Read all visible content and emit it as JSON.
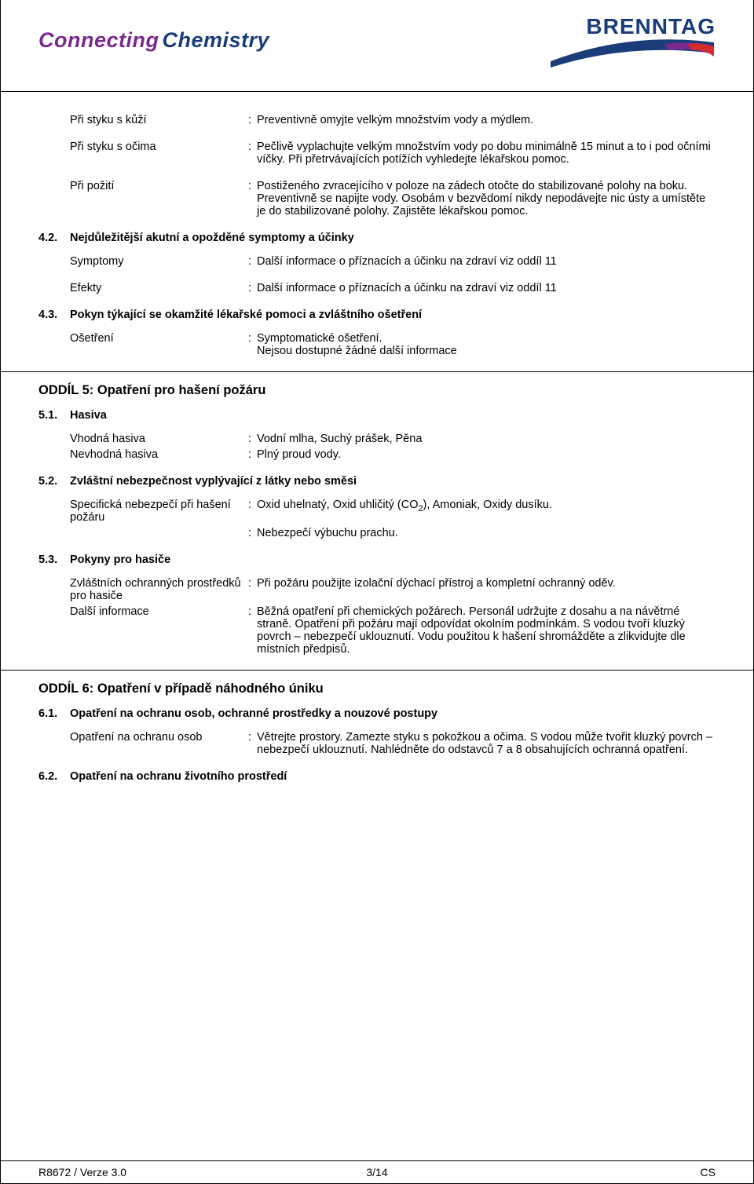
{
  "header": {
    "brand_left_1": "Connecting",
    "brand_left_2": "Chemistry",
    "brand_right": "BRENNTAG",
    "swoosh_colors": [
      "#1a3d7a",
      "#7a2a8f",
      "#d62c2c"
    ]
  },
  "s4_rows": [
    {
      "label": "Při styku s kůží",
      "value": "Preventivně omyjte velkým množstvím vody a mýdlem."
    },
    {
      "label": "Při styku s očima",
      "value": "Pečlivě vyplachujte velkým množstvím vody po dobu minimálně 15 minut a to i pod očními víčky. Při přetrvávajících potížích vyhledejte lékařskou pomoc."
    },
    {
      "label": "Při požití",
      "value": "Postiženého zvracejícího v poloze na zádech otočte do stabilizované polohy na boku. Preventivně se napijte vody. Osobám v bezvědomí nikdy nepodávejte nic ústy a umístěte je do stabilizované polohy. Zajistěte lékařskou pomoc."
    }
  ],
  "s4_2": {
    "num": "4.2.",
    "title": "Nejdůležitější akutní a opožděné symptomy a účinky"
  },
  "s4_2_rows": [
    {
      "label": "Symptomy",
      "value": "Další informace o příznacích a účinku na zdraví viz oddíl 11"
    },
    {
      "label": "Efekty",
      "value": "Další informace o příznacích a účinku na zdraví viz oddíl 11"
    }
  ],
  "s4_3": {
    "num": "4.3.",
    "title": "Pokyn týkající se okamžité lékařské pomoci a zvláštního ošetření"
  },
  "s4_3_rows": [
    {
      "label": "Ošetření",
      "value": "Symptomatické ošetření.\nNejsou dostupné žádné další informace"
    }
  ],
  "section5": {
    "title": "ODDÍL 5: Opatření pro hašení požáru"
  },
  "s5_1": {
    "num": "5.1.",
    "title": "Hasiva"
  },
  "s5_1_rows": [
    {
      "label": "Vhodná hasiva",
      "value": "Vodní mlha, Suchý prášek, Pěna"
    },
    {
      "label": "Nevhodná hasiva",
      "value": "Plný proud vody."
    }
  ],
  "s5_2": {
    "num": "5.2.",
    "title": "Zvláštní nebezpečnost vyplývající z látky nebo směsi"
  },
  "s5_2_rows": [
    {
      "label": "Specifická nebezpečí při hašení požáru",
      "value_html": "Oxid uhelnatý, Oxid uhličitý (CO<sub>2</sub>), Amoniak, Oxidy dusíku."
    },
    {
      "label": "",
      "value": "Nebezpečí výbuchu prachu."
    }
  ],
  "s5_3": {
    "num": "5.3.",
    "title": "Pokyny pro hasiče"
  },
  "s5_3_rows": [
    {
      "label": "Zvláštních ochranných prostředků pro hasiče",
      "value": "Při požáru použijte izolační dýchací přístroj a kompletní ochranný oděv."
    },
    {
      "label": "Další informace",
      "value": "Běžná opatření při chemických požárech. Personál udržujte z dosahu a na návětrné straně. Opatření při požáru mají odpovídat okolním podmínkám. S vodou tvoří kluzký povrch – nebezpečí uklouznutí. Vodu použitou k hašení shromážděte a zlikvidujte dle místních předpisů."
    }
  ],
  "section6": {
    "title": "ODDÍL 6: Opatření v případě náhodného úniku"
  },
  "s6_1": {
    "num": "6.1.",
    "title": "Opatření na ochranu osob, ochranné prostředky a nouzové postupy"
  },
  "s6_1_rows": [
    {
      "label": "Opatření na ochranu osob",
      "value": "Větrejte prostory. Zamezte styku s pokožkou a očima. S vodou může tvořit kluzký povrch – nebezpečí uklouznutí. Nahlédněte do odstavců 7 a 8 obsahujících ochranná opatření."
    }
  ],
  "s6_2": {
    "num": "6.2.",
    "title": "Opatření na ochranu životního prostředí"
  },
  "footer": {
    "left": "R8672 / Verze 3.0",
    "mid": "3/14",
    "right": "CS"
  },
  "colors": {
    "text": "#000000",
    "brand_purple": "#7a2a8f",
    "brand_blue": "#1a3d7a",
    "brand_red": "#d62c2c",
    "border": "#000000"
  }
}
